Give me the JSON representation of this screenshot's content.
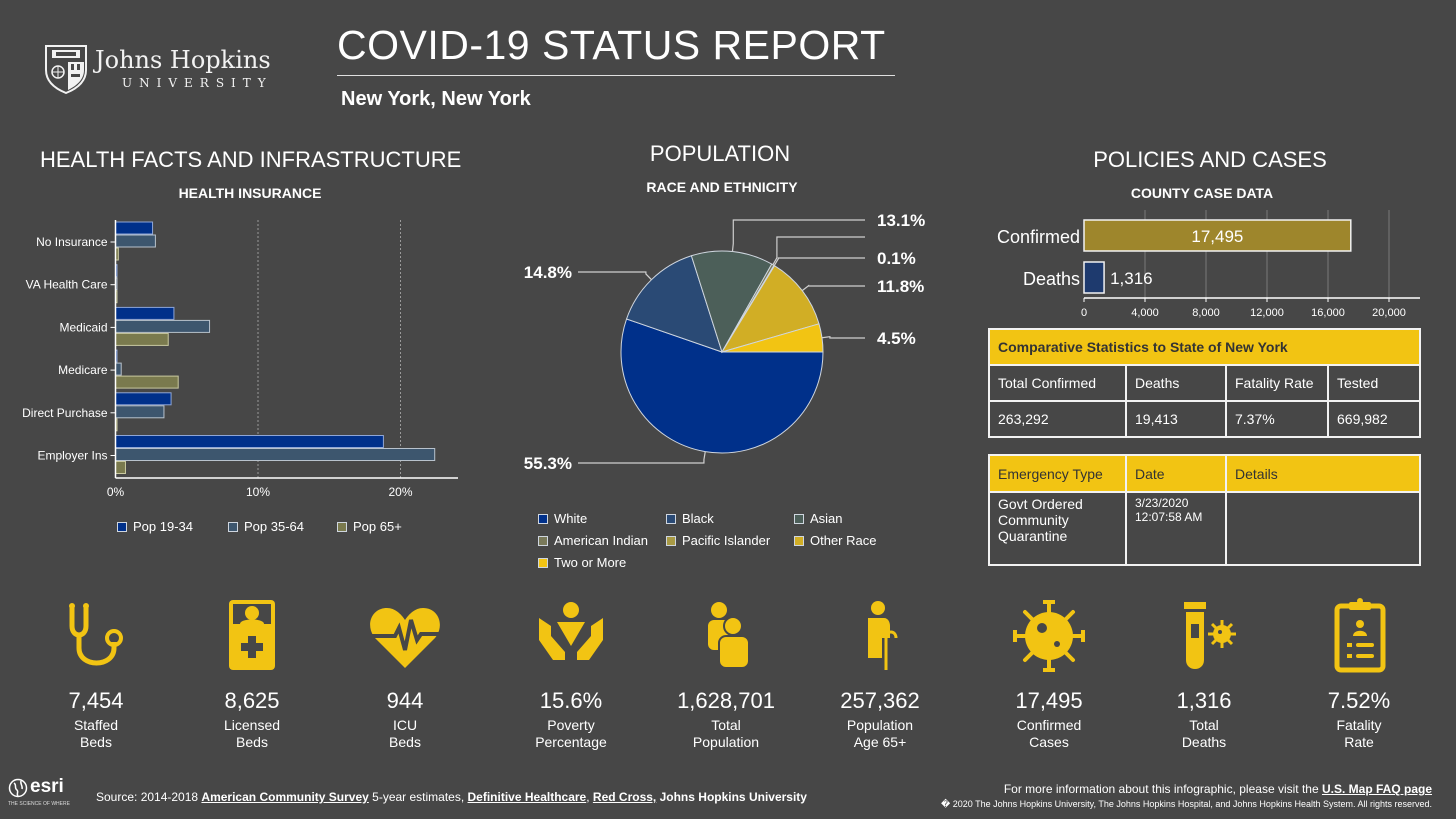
{
  "header": {
    "logo_line1": "Johns Hopkins",
    "logo_line2": "UNIVERSITY",
    "title": "COVID-19 STATUS REPORT",
    "location": "New York,  New York"
  },
  "sections": {
    "health": {
      "title": "HEALTH FACTS AND INFRASTRUCTURE",
      "subtitle": "HEALTH INSURANCE"
    },
    "population": {
      "title": "POPULATION",
      "subtitle": "RACE AND ETHNICITY"
    },
    "policies": {
      "title": "POLICIES AND CASES",
      "subtitle": "COUNTY CASE DATA"
    }
  },
  "colors": {
    "background": "#474747",
    "accent_yellow": "#f2c413",
    "pop_19_34": "#00308a",
    "pop_35_64": "#3d566e",
    "pop_65_plus": "#7a7a4e",
    "white": "#00308a",
    "black": "#2a4a75",
    "asian": "#4c5f59",
    "american_indian": "#79795a",
    "pacific_islander": "#a89a45",
    "other_race": "#d1ae25",
    "two_or_more": "#f2c413",
    "confirmed_bar": "#9e862c",
    "deaths_bar": "#1e3a6e"
  },
  "chart_data": [
    {
      "type": "bar",
      "orientation": "horizontal",
      "title": "HEALTH INSURANCE",
      "categories": [
        "No Insurance",
        "VA Health Care",
        "Medicaid",
        "Medicare",
        "Direct Purchase",
        "Employer Ins"
      ],
      "series": [
        {
          "name": "Pop 19-34",
          "values": [
            2.6,
            0.1,
            4.1,
            0.1,
            3.9,
            18.8
          ]
        },
        {
          "name": "Pop 35-64",
          "values": [
            2.8,
            0.1,
            6.6,
            0.4,
            3.4,
            22.4
          ]
        },
        {
          "name": "Pop 65+",
          "values": [
            0.2,
            0.1,
            3.7,
            4.4,
            0.1,
            0.7
          ]
        }
      ],
      "xlim": [
        0,
        24
      ],
      "xticks": [
        "0%",
        "10%",
        "20%"
      ],
      "xtick_values": [
        0,
        10,
        20
      ],
      "grid": true,
      "legend": "bottom"
    },
    {
      "type": "pie",
      "title": "RACE AND ETHNICITY",
      "categories": [
        "White",
        "Black",
        "Asian",
        "American Indian",
        "Pacific Islander",
        "Other Race",
        "Two or More"
      ],
      "values": [
        55.3,
        14.8,
        13.1,
        0.4,
        0.1,
        11.8,
        4.5
      ],
      "labels": [
        "55.3%",
        "14.8%",
        "13.1%",
        "",
        "0.1%",
        "11.8%",
        "4.5%"
      ],
      "legend": "bottom"
    },
    {
      "type": "bar",
      "orientation": "horizontal",
      "title": "COUNTY CASE DATA",
      "categories": [
        "Confirmed",
        "Deaths"
      ],
      "values": [
        17495,
        1316
      ],
      "value_labels": [
        "17,495",
        "1,316"
      ],
      "xlim": [
        0,
        22000
      ],
      "xticks": [
        "0",
        "4,000",
        "8,000",
        "12,000",
        "16,000",
        "20,000"
      ],
      "xtick_values": [
        0,
        4000,
        8000,
        12000,
        16000,
        20000
      ],
      "grid": true
    }
  ],
  "comparative_table": {
    "title": "Comparative Statistics to State of New York",
    "headers": [
      "Total Confirmed",
      "Deaths",
      "Fatality Rate",
      "Tested"
    ],
    "values": [
      "263,292",
      "19,413",
      "7.37%",
      "669,982"
    ]
  },
  "emergency_table": {
    "headers": [
      "Emergency Type",
      "Date",
      "Details"
    ],
    "rows": [
      {
        "type": "Govt Ordered Community Quarantine",
        "date": "3/23/2020",
        "time": "12:07:58 AM",
        "details": ""
      }
    ]
  },
  "stats": [
    {
      "icon": "stethoscope-icon",
      "value": "7,454",
      "label1": "Staffed",
      "label2": "Beds"
    },
    {
      "icon": "hospital-bed-icon",
      "value": "8,625",
      "label1": "Licensed",
      "label2": "Beds"
    },
    {
      "icon": "heartbeat-icon",
      "value": "944",
      "label1": "ICU",
      "label2": "Beds"
    },
    {
      "icon": "hands-person-icon",
      "value": "15.6%",
      "label1": "Poverty",
      "label2": "Percentage"
    },
    {
      "icon": "people-icon",
      "value": "1,628,701",
      "label1": "Total",
      "label2": "Population"
    },
    {
      "icon": "elderly-person-icon",
      "value": "257,362",
      "label1": "Population",
      "label2": "Age 65+"
    },
    {
      "icon": "virus-icon",
      "value": "17,495",
      "label1": "Confirmed",
      "label2": "Cases"
    },
    {
      "icon": "test-tube-icon",
      "value": "1,316",
      "label1": "Total",
      "label2": "Deaths"
    },
    {
      "icon": "clipboard-icon",
      "value": "7.52%",
      "label1": "Fatality",
      "label2": "Rate"
    }
  ],
  "footer": {
    "esri_word": "esri",
    "esri_tagline": "THE SCIENCE OF WHERE",
    "source_prefix": "Source: 2014-2018 ",
    "source_link1": "American Community Survey",
    "source_mid": " 5-year estimates, ",
    "source_link2": "Definitive Healthcare",
    "source_sep": ", ",
    "source_link3": "Red Cross,",
    "source_suffix": " Johns Hopkins University",
    "more_info_prefix": "For more information about this infographic, please visit the ",
    "more_info_link": "U.S. Map FAQ page",
    "copyright": "� 2020 The Johns Hopkins University, The Johns Hopkins Hospital, and Johns Hopkins Health System. All rights reserved."
  }
}
